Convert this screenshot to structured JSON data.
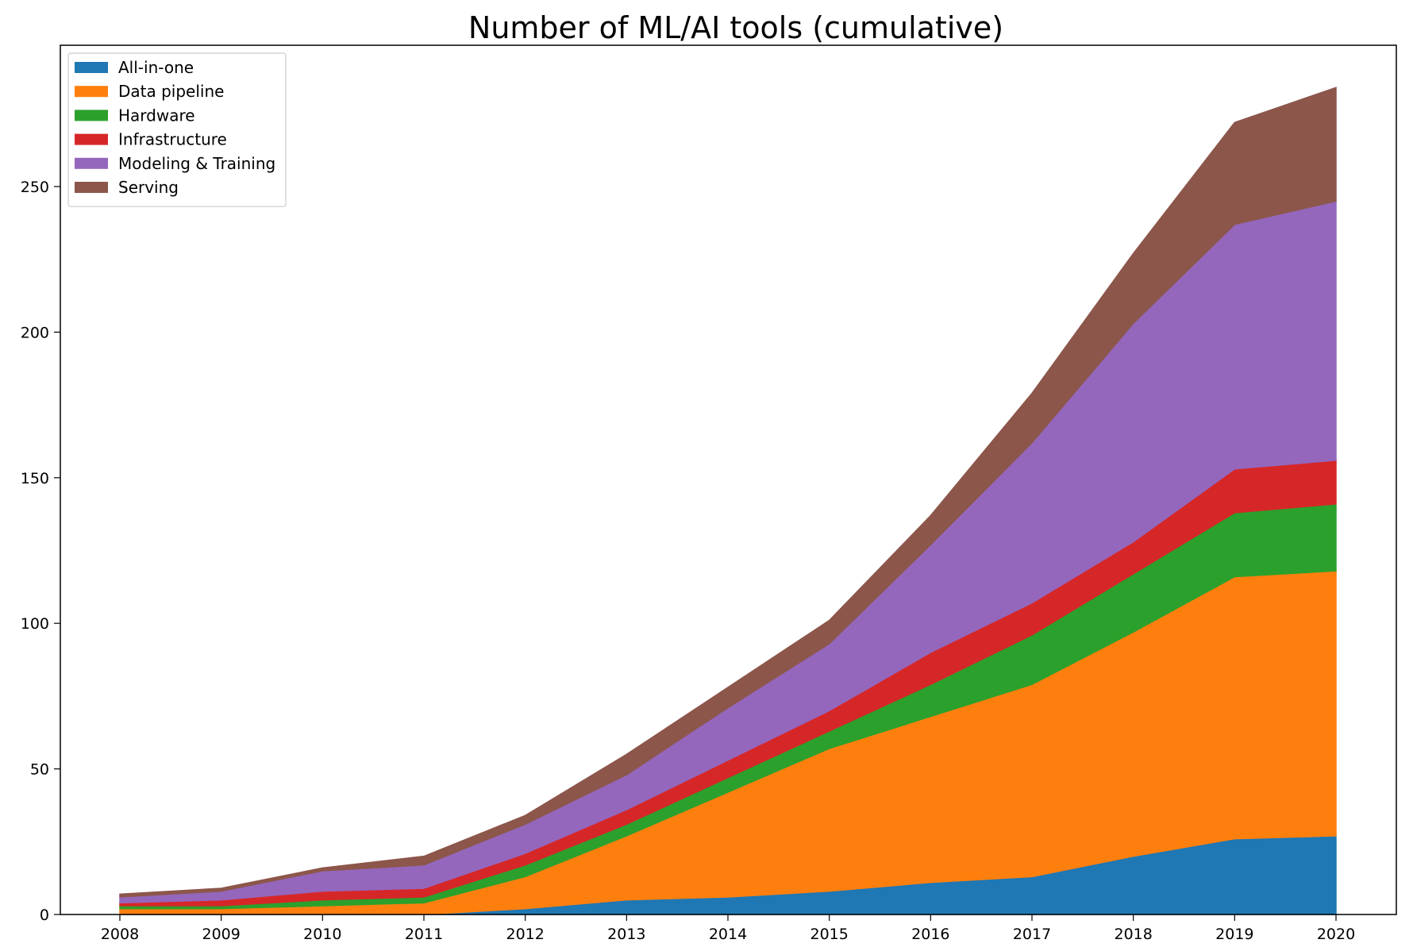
{
  "chart_data": {
    "type": "area",
    "stacked": true,
    "title": "Number of ML/AI tools (cumulative)",
    "xlabel": "",
    "ylabel": "",
    "x": [
      "2008",
      "2009",
      "2010",
      "2011",
      "2012",
      "2013",
      "2014",
      "2015",
      "2016",
      "2017",
      "2018",
      "2019",
      "2020"
    ],
    "ylim": [
      0,
      285
    ],
    "yticks": [
      "0",
      "50",
      "100",
      "150",
      "200",
      "250"
    ],
    "grid": false,
    "legend_position": "top-left",
    "series": [
      {
        "name": "All-in-one",
        "color": "#1f77b4",
        "values": [
          0,
          0,
          0,
          0,
          2,
          5,
          6,
          8,
          11,
          13,
          20,
          26,
          27
        ]
      },
      {
        "name": "Data pipeline",
        "color": "#ff7f0e",
        "values": [
          2,
          2,
          3,
          4,
          11,
          22,
          36,
          49,
          57,
          66,
          77,
          90,
          91
        ]
      },
      {
        "name": "Hardware",
        "color": "#2ca02c",
        "values": [
          1,
          1,
          2,
          2,
          4,
          4,
          5,
          6,
          11,
          17,
          20,
          22,
          23
        ]
      },
      {
        "name": "Infrastructure",
        "color": "#d62728",
        "values": [
          1,
          2,
          3,
          3,
          4,
          5,
          6,
          7,
          11,
          11,
          11,
          15,
          15
        ]
      },
      {
        "name": "Modeling & Training",
        "color": "#9467bd",
        "values": [
          2,
          3,
          7,
          8,
          10,
          12,
          18,
          23,
          37,
          55,
          75,
          84,
          89
        ]
      },
      {
        "name": "Serving",
        "color": "#8c564b",
        "values": [
          1,
          1,
          1,
          3,
          3,
          7,
          7,
          8,
          10,
          17,
          24,
          35,
          39
        ]
      }
    ]
  }
}
